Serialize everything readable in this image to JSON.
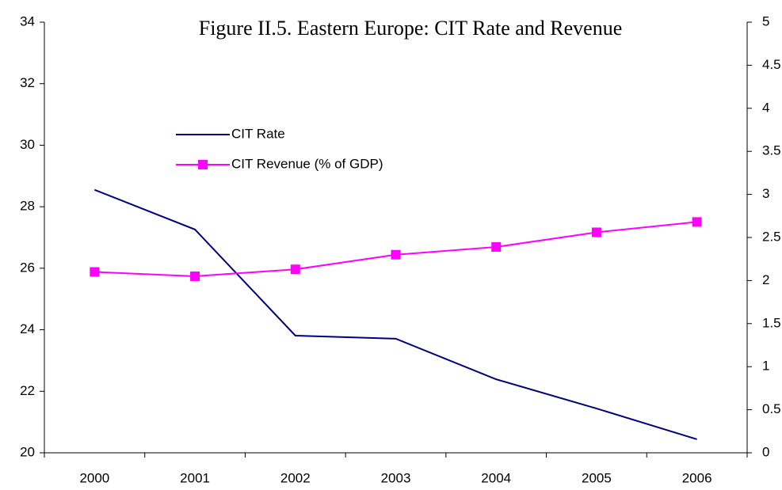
{
  "chart_data": {
    "type": "line",
    "title": "Figure II.5. Eastern Europe: CIT Rate and Revenue",
    "categories": [
      "2000",
      "2001",
      "2002",
      "2003",
      "2004",
      "2005",
      "2006"
    ],
    "series": [
      {
        "name": "CIT Rate",
        "color": "#000080",
        "values": [
          28.55,
          27.26,
          23.81,
          23.71,
          22.39,
          21.44,
          20.44
        ]
      },
      {
        "name": "CIT Revenue (% of GDP)",
        "color": "#ff00ff",
        "axis": "y2",
        "marker": "square",
        "values": [
          2.1,
          2.05,
          2.13,
          2.3,
          2.39,
          2.56,
          2.68
        ]
      }
    ],
    "ylim": [
      20,
      34
    ],
    "yticks": [
      20,
      22,
      24,
      26,
      28,
      30,
      32,
      34
    ],
    "y2lim": [
      0,
      5
    ],
    "y2ticks": [
      0,
      0.5,
      1,
      1.5,
      2,
      2.5,
      3,
      3.5,
      4,
      4.5,
      5
    ],
    "grid": false
  }
}
